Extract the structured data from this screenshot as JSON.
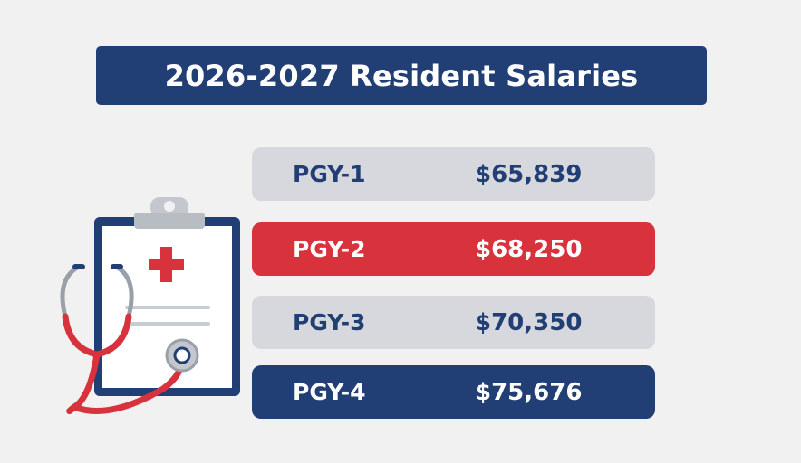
{
  "title": "2026-2027 Resident Salaries",
  "salaries": [
    {
      "level": "PGY-1",
      "amount": "$65,839"
    },
    {
      "level": "PGY-2",
      "amount": "$68,250"
    },
    {
      "level": "PGY-3",
      "amount": "$70,350"
    },
    {
      "level": "PGY-4",
      "amount": "$75,676"
    }
  ],
  "colors": {
    "navy": "#213f75",
    "red": "#d8323d",
    "gray": "#d6d8dd",
    "background": "#f1f1f2"
  },
  "illustration": {
    "icons": [
      "clipboard-icon",
      "medical-cross-icon",
      "stethoscope-icon"
    ]
  }
}
